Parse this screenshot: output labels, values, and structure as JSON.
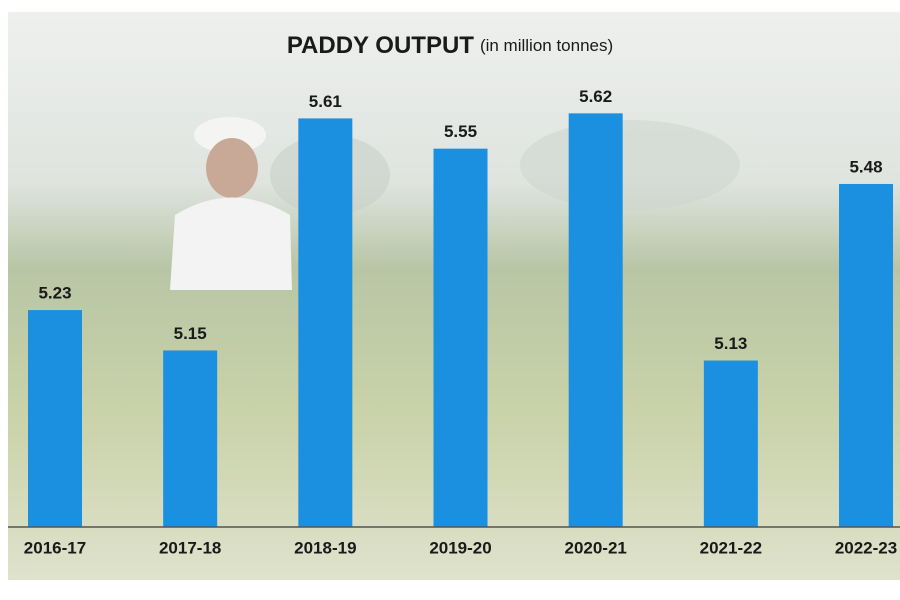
{
  "chart_data": {
    "type": "bar",
    "title": "PADDY OUTPUT",
    "subtitle": "(in million tonnes)",
    "categories": [
      "2016-17",
      "2017-18",
      "2018-19",
      "2019-20",
      "2020-21",
      "2021-22",
      "2022-23"
    ],
    "values": [
      5.23,
      5.15,
      5.61,
      5.55,
      5.62,
      5.13,
      5.48
    ],
    "color": "#1b8fe0",
    "ylim": [
      4.8,
      5.7
    ]
  }
}
